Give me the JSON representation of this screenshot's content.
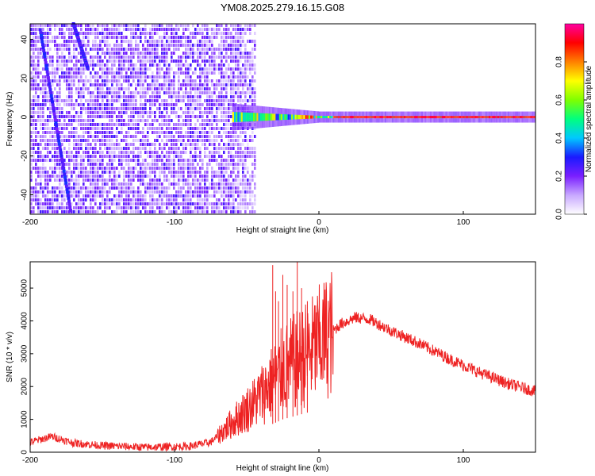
{
  "title": "YM08.2025.279.16.15.G08",
  "chart_data": [
    {
      "type": "heatmap",
      "xlabel": "Height of straight line (km)",
      "ylabel": "Frequency (Hz)",
      "xlim": [
        -200,
        150
      ],
      "ylim": [
        -50,
        48
      ],
      "xticks": [
        -200,
        -100,
        0,
        100
      ],
      "yticks": [
        -40,
        -20,
        0,
        20,
        40
      ],
      "colorbar": {
        "label": "Normalized spectral amplitude",
        "range": [
          0,
          1
        ],
        "ticks": [
          0.0,
          0.2,
          0.4,
          0.6,
          0.8
        ],
        "colormap": [
          "#ffffff",
          "#c8a8ff",
          "#7a1fff",
          "#1a1aff",
          "#00c8ff",
          "#00ff7f",
          "#7fff00",
          "#ffff00",
          "#ff8000",
          "#ff0000",
          "#ff00a0"
        ]
      },
      "features": [
        {
          "name": "noise region",
          "x_range": [
            -200,
            -45
          ],
          "amplitude": 0.15
        },
        {
          "name": "diagonal trace",
          "points": [
            [
              -193,
              45
            ],
            [
              -172,
              -48
            ]
          ],
          "amplitude": 0.25
        },
        {
          "name": "diagonal trace",
          "points": [
            [
              -170,
              48
            ],
            [
              -160,
              25
            ]
          ],
          "amplitude": 0.25
        },
        {
          "name": "carrier line",
          "x_range": [
            -60,
            150
          ],
          "y": 0,
          "amplitude": 0.95
        }
      ]
    },
    {
      "type": "line",
      "xlabel": "Height of straight line (km)",
      "ylabel": "SNR (10 * v/v)",
      "xlim": [
        -200,
        150
      ],
      "ylim": [
        0,
        5800
      ],
      "xticks": [
        -200,
        -100,
        0,
        100
      ],
      "yticks": [
        0,
        1000,
        2000,
        3000,
        4000,
        5000
      ],
      "color": "#ee2222",
      "envelope": [
        {
          "x": -200,
          "y": 300
        },
        {
          "x": -185,
          "y": 480
        },
        {
          "x": -170,
          "y": 280
        },
        {
          "x": -150,
          "y": 200
        },
        {
          "x": -120,
          "y": 150
        },
        {
          "x": -90,
          "y": 180
        },
        {
          "x": -75,
          "y": 300
        },
        {
          "x": -65,
          "y": 700
        },
        {
          "x": -55,
          "y": 1100
        },
        {
          "x": -45,
          "y": 1500
        },
        {
          "x": -35,
          "y": 2000
        },
        {
          "x": -25,
          "y": 2500
        },
        {
          "x": -15,
          "y": 2800
        },
        {
          "x": -5,
          "y": 3100
        },
        {
          "x": 5,
          "y": 3500
        },
        {
          "x": 15,
          "y": 3900
        },
        {
          "x": 25,
          "y": 4100
        },
        {
          "x": 35,
          "y": 4050
        },
        {
          "x": 50,
          "y": 3700
        },
        {
          "x": 70,
          "y": 3300
        },
        {
          "x": 90,
          "y": 2850
        },
        {
          "x": 110,
          "y": 2450
        },
        {
          "x": 130,
          "y": 2100
        },
        {
          "x": 150,
          "y": 1850
        }
      ],
      "spikes": [
        {
          "x": -32,
          "y": 5700
        },
        {
          "x": -30,
          "y": 4900
        },
        {
          "x": -28,
          "y": 4600
        },
        {
          "x": -25,
          "y": 5400
        },
        {
          "x": -22,
          "y": 5100
        },
        {
          "x": -18,
          "y": 4900
        },
        {
          "x": -15,
          "y": 5800
        },
        {
          "x": -12,
          "y": 5000
        },
        {
          "x": -8,
          "y": 4600
        }
      ]
    }
  ]
}
